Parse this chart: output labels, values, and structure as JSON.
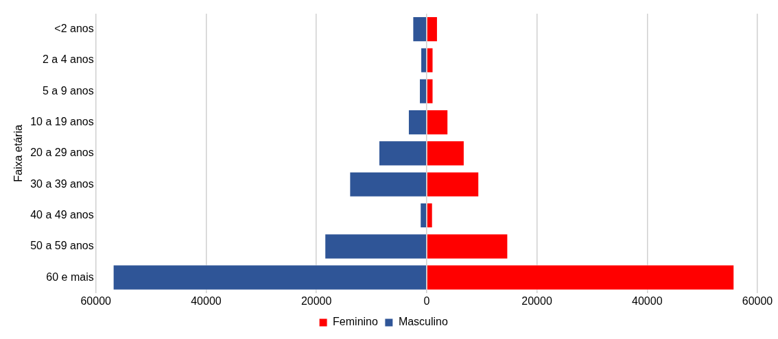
{
  "chart_data": {
    "type": "bar",
    "orientation": "horizontal",
    "stacked": true,
    "ylabel": "Faixa etária",
    "categories": [
      "<2 anos",
      "2 a 4 anos",
      "5 a 9 anos",
      "10 a 19 anos",
      "20 a 29 anos",
      "30 a 39 anos",
      "40 a 49 anos",
      "50 a 59 anos",
      "60 e mais"
    ],
    "series": [
      {
        "name": "Feminino",
        "color": "#ff0000",
        "values": [
          2000,
          1200,
          1200,
          3900,
          6850,
          9500,
          1100,
          14750,
          55800
        ]
      },
      {
        "name": "Masculino",
        "color": "#2f5597",
        "values": [
          -2550,
          -1100,
          -1350,
          -3350,
          -8700,
          -14000,
          -1200,
          -18500,
          -56900
        ]
      }
    ],
    "xlim": [
      -60000,
      60000
    ],
    "xticks": [
      {
        "value": -60000,
        "label": "60000"
      },
      {
        "value": -40000,
        "label": "40000"
      },
      {
        "value": -20000,
        "label": "20000"
      },
      0,
      20000,
      40000,
      60000
    ],
    "grid": "x",
    "legend": "bottom"
  }
}
